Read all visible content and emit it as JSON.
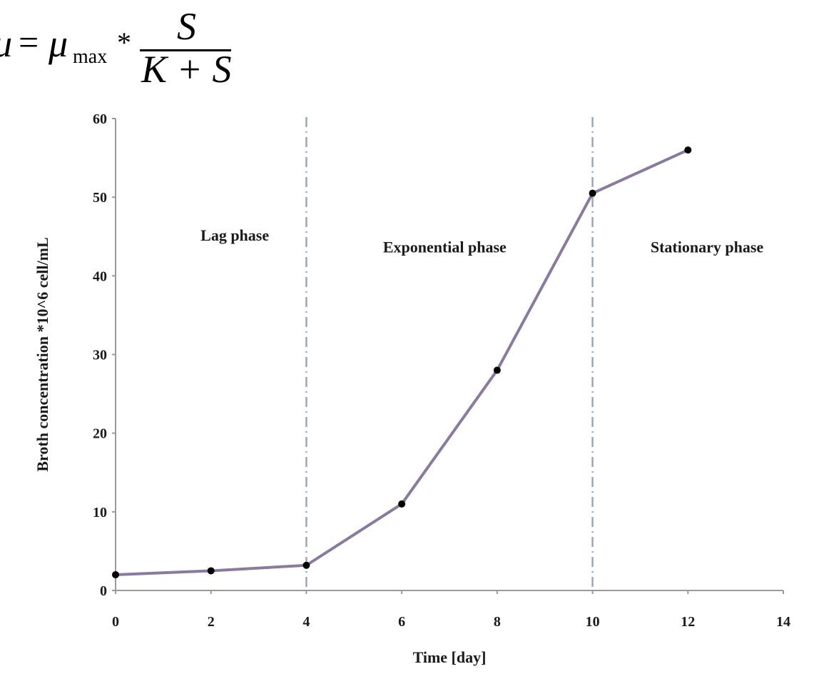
{
  "formula": {
    "lhs": "μ",
    "eq": "=",
    "mu": "μ",
    "sub": "max",
    "times": "*",
    "numerator": "S",
    "denominator": "K + S"
  },
  "chart_data": {
    "type": "line",
    "title": "",
    "xlabel": "Time [day]",
    "ylabel": "Broth concentration *10^6 cell/mL",
    "xlim": [
      0,
      14
    ],
    "ylim": [
      0,
      60
    ],
    "xticks": [
      0,
      2,
      4,
      6,
      8,
      10,
      12,
      14
    ],
    "yticks": [
      0,
      10,
      20,
      30,
      40,
      50,
      60
    ],
    "grid": false,
    "legend": "none",
    "line_color": "#8a7a9e",
    "marker_color": "#000000",
    "phase_line_color": "#9aa7bb",
    "series": [
      {
        "x": [
          0,
          2,
          4,
          6,
          8,
          10,
          12
        ],
        "y": [
          2,
          2.5,
          3.2,
          11,
          28,
          50.5,
          56
        ]
      }
    ],
    "phase_boundaries": [
      4,
      10
    ],
    "phases": [
      {
        "label": "Lag phase",
        "x": 2.5,
        "y": 44.5
      },
      {
        "label": "Exponential phase",
        "x": 6.9,
        "y": 43
      },
      {
        "label": "Stationary phase",
        "x": 12.4,
        "y": 43
      }
    ]
  }
}
